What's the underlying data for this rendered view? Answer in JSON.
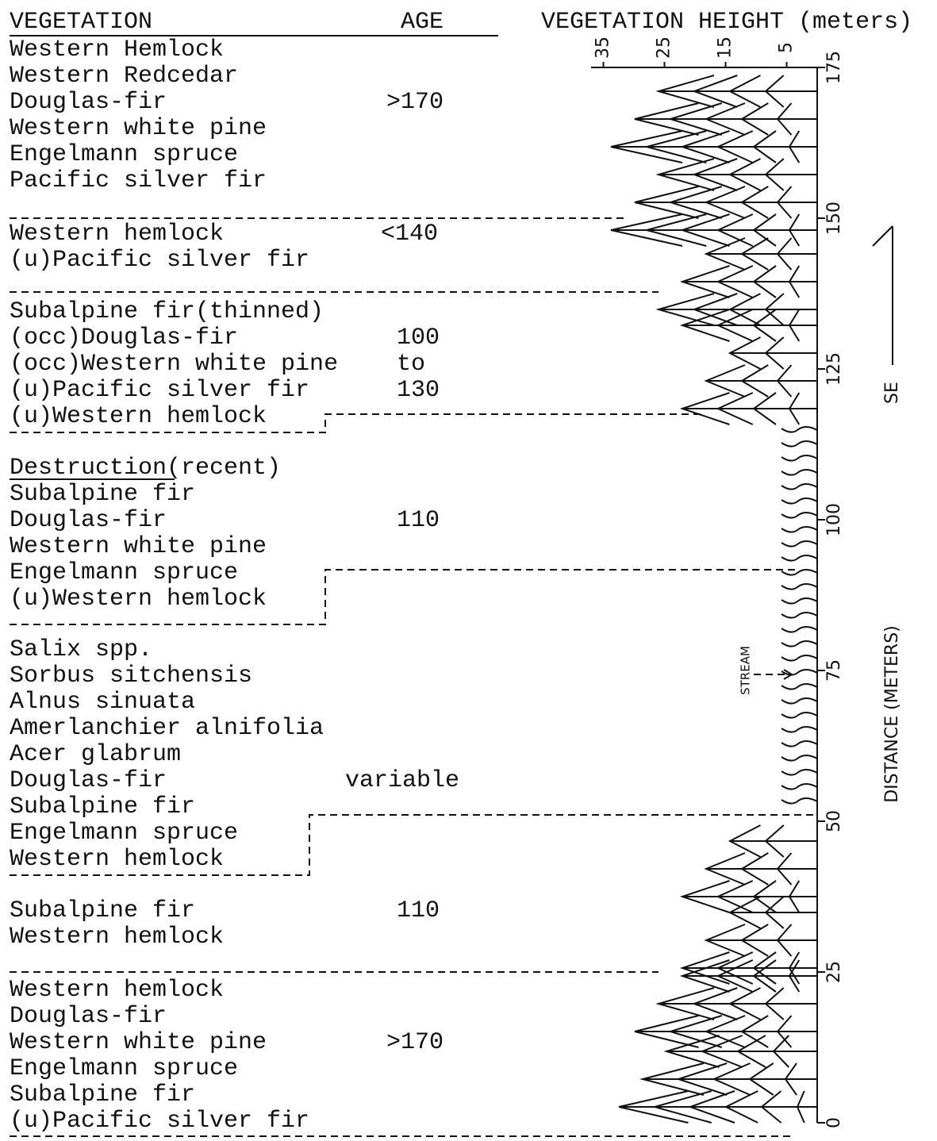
{
  "header": {
    "vegetation": "VEGETATION",
    "age": "AGE",
    "height": "VEGETATION HEIGHT (meters)"
  },
  "groups": [
    {
      "species": [
        "Western Hemlock",
        "Western Redcedar",
        "Douglas-fir",
        "Western white pine",
        "Engelmann spruce",
        "Pacific silver fir"
      ],
      "age": [
        ">170"
      ]
    },
    {
      "species": [
        "Western hemlock",
        "(u)Pacific silver fir"
      ],
      "age": [
        "<140"
      ]
    },
    {
      "species": [
        "Subalpine fir(thinned)",
        "(occ)Douglas-fir",
        "(occ)Western white pine",
        "(u)Pacific silver fir",
        "(u)Western hemlock"
      ],
      "age": [
        "100",
        "to",
        "130"
      ]
    },
    {
      "species": [
        "Destruction(recent)",
        "Subalpine fir",
        "Douglas-fir",
        "Western white pine",
        "Engelmann spruce",
        "(u)Western hemlock"
      ],
      "age": [
        "110"
      ]
    },
    {
      "species": [
        "Salix spp.",
        "Sorbus sitchensis",
        "Alnus sinuata",
        "Amerlanchier alnifolia",
        "Acer glabrum",
        "Douglas-fir",
        "Subalpine fir",
        "Engelmann spruce",
        "Western hemlock"
      ],
      "age": [
        "variable"
      ]
    },
    {
      "species": [
        "Subalpine fir",
        "Western hemlock"
      ],
      "age": [
        "110"
      ]
    },
    {
      "species": [
        "Western hemlock",
        "Douglas-fir",
        "Western white pine",
        "Engelmann spruce",
        "Subalpine fir",
        "(u)Pacific silver fir"
      ],
      "age": [
        ">170"
      ]
    }
  ],
  "height_axis": {
    "ticks": [
      35,
      25,
      15,
      5
    ]
  },
  "distance_axis": {
    "label": "DISTANCE (METERS)",
    "ticks": [
      0,
      25,
      50,
      75,
      100,
      125,
      150,
      175
    ]
  },
  "stream": "STREAM",
  "direction": "SE"
}
